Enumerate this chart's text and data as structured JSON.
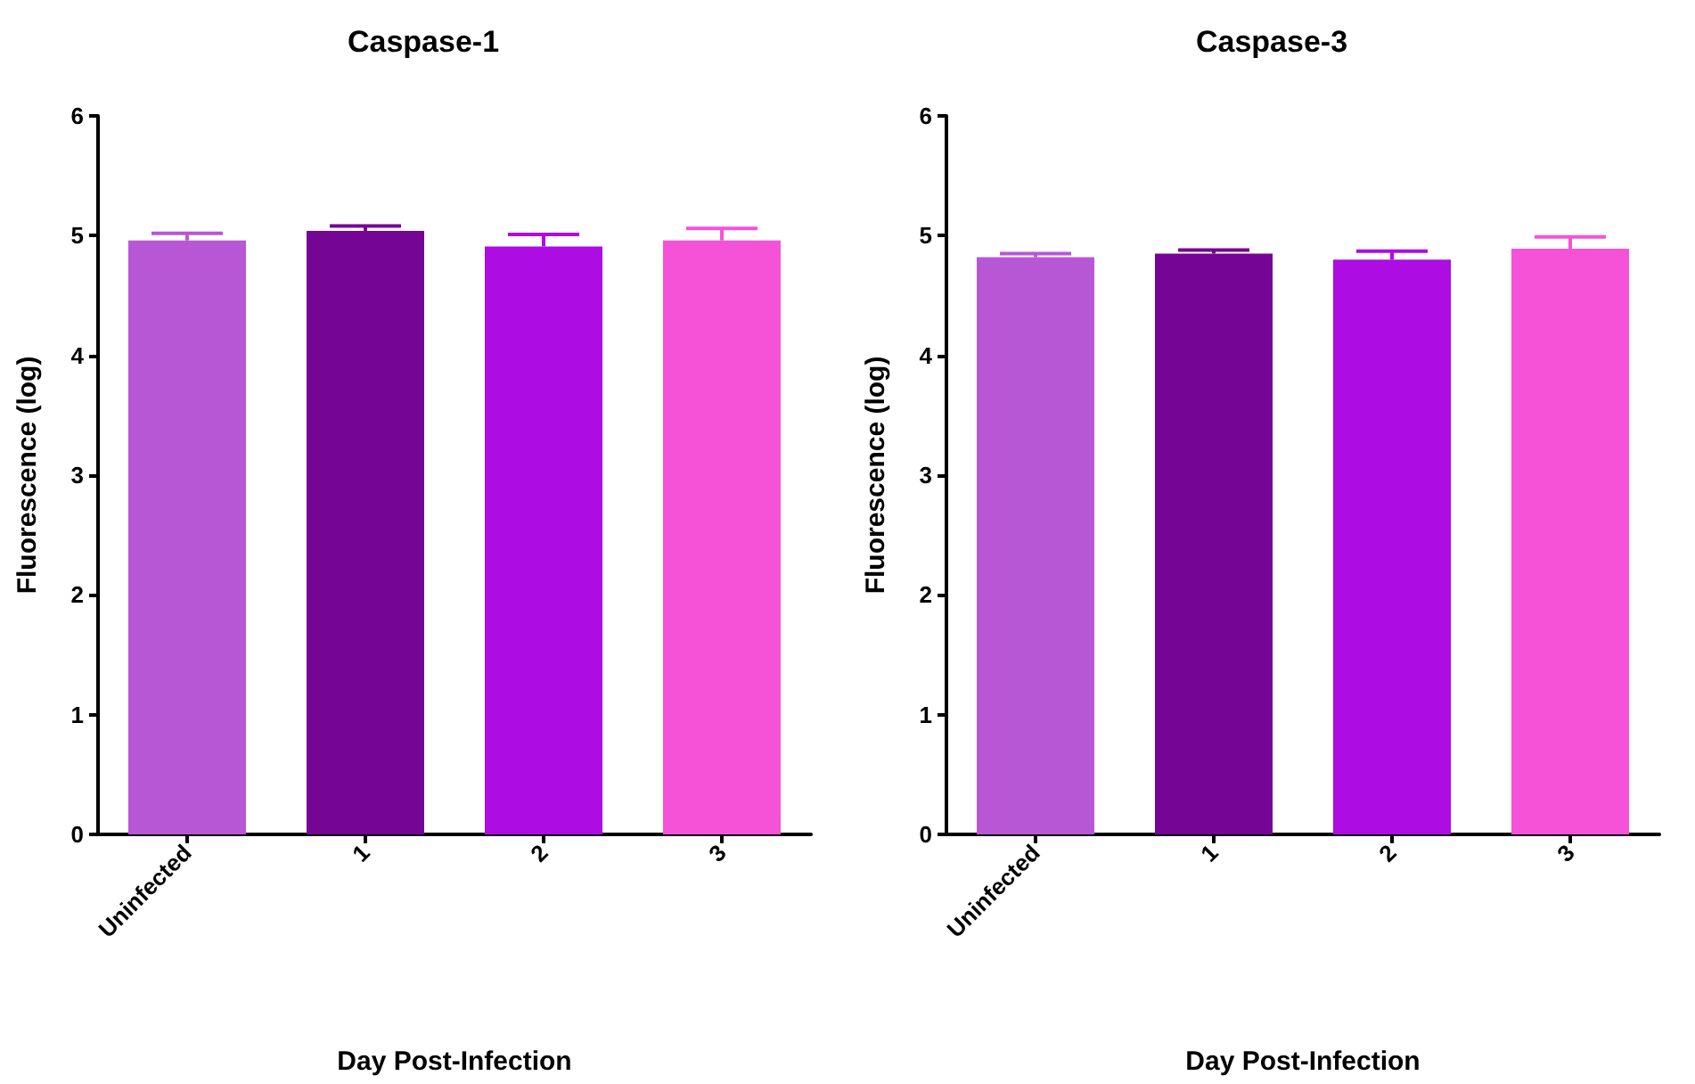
{
  "chart_data": [
    {
      "type": "bar",
      "title": "Caspase-1",
      "xlabel": "Day Post-Infection",
      "ylabel": "Fluorescence (log)",
      "categories": [
        "Uninfected",
        "1",
        "2",
        "3"
      ],
      "values": [
        4.96,
        5.04,
        4.91,
        4.96
      ],
      "errors": [
        0.06,
        0.04,
        0.1,
        0.1
      ],
      "colors": [
        "#b857d6",
        "#750595",
        "#ad0ce3",
        "#f652d8"
      ],
      "ylim": [
        0,
        6
      ],
      "yticks": [
        0,
        1,
        2,
        3,
        4,
        5,
        6
      ],
      "grid": false
    },
    {
      "type": "bar",
      "title": "Caspase-3",
      "xlabel": "Day Post-Infection",
      "ylabel": "Fluorescence (log)",
      "categories": [
        "Uninfected",
        "1",
        "2",
        "3"
      ],
      "values": [
        4.82,
        4.85,
        4.8,
        4.89
      ],
      "errors": [
        0.03,
        0.03,
        0.07,
        0.1
      ],
      "colors": [
        "#b857d6",
        "#750595",
        "#ad0ce3",
        "#f652d8"
      ],
      "ylim": [
        0,
        6
      ],
      "yticks": [
        0,
        1,
        2,
        3,
        4,
        5,
        6
      ],
      "grid": false
    }
  ]
}
